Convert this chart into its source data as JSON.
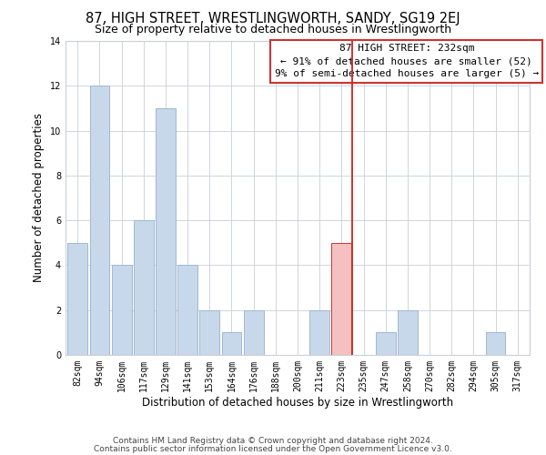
{
  "title": "87, HIGH STREET, WRESTLINGWORTH, SANDY, SG19 2EJ",
  "subtitle": "Size of property relative to detached houses in Wrestlingworth",
  "xlabel": "Distribution of detached houses by size in Wrestlingworth",
  "ylabel": "Number of detached properties",
  "bins": [
    "82sqm",
    "94sqm",
    "106sqm",
    "117sqm",
    "129sqm",
    "141sqm",
    "153sqm",
    "164sqm",
    "176sqm",
    "188sqm",
    "200sqm",
    "211sqm",
    "223sqm",
    "235sqm",
    "247sqm",
    "258sqm",
    "270sqm",
    "282sqm",
    "294sqm",
    "305sqm",
    "317sqm"
  ],
  "counts": [
    5,
    12,
    4,
    6,
    11,
    4,
    2,
    1,
    2,
    0,
    0,
    2,
    5,
    0,
    1,
    2,
    0,
    0,
    0,
    1,
    0
  ],
  "bar_color": "#c8d8eb",
  "bar_edge_color": "#a0b8d0",
  "highlight_bar_index": 12,
  "highlight_color": "#f5c0c0",
  "highlight_edge_color": "#cc3333",
  "vline_x": 12.5,
  "vline_color": "#cc2222",
  "annotation_title": "87 HIGH STREET: 232sqm",
  "annotation_line1": "← 91% of detached houses are smaller (52)",
  "annotation_line2": "9% of semi-detached houses are larger (5) →",
  "annotation_box_color": "#ffffff",
  "annotation_box_edge_color": "#cc3333",
  "ylim": [
    0,
    14
  ],
  "yticks": [
    0,
    2,
    4,
    6,
    8,
    10,
    12,
    14
  ],
  "footnote1": "Contains HM Land Registry data © Crown copyright and database right 2024.",
  "footnote2": "Contains public sector information licensed under the Open Government Licence v3.0.",
  "bg_color": "#ffffff",
  "grid_color": "#c8d0d8",
  "title_fontsize": 10.5,
  "subtitle_fontsize": 9,
  "axis_label_fontsize": 8.5,
  "tick_fontsize": 7,
  "annotation_fontsize": 8,
  "footnote_fontsize": 6.5
}
